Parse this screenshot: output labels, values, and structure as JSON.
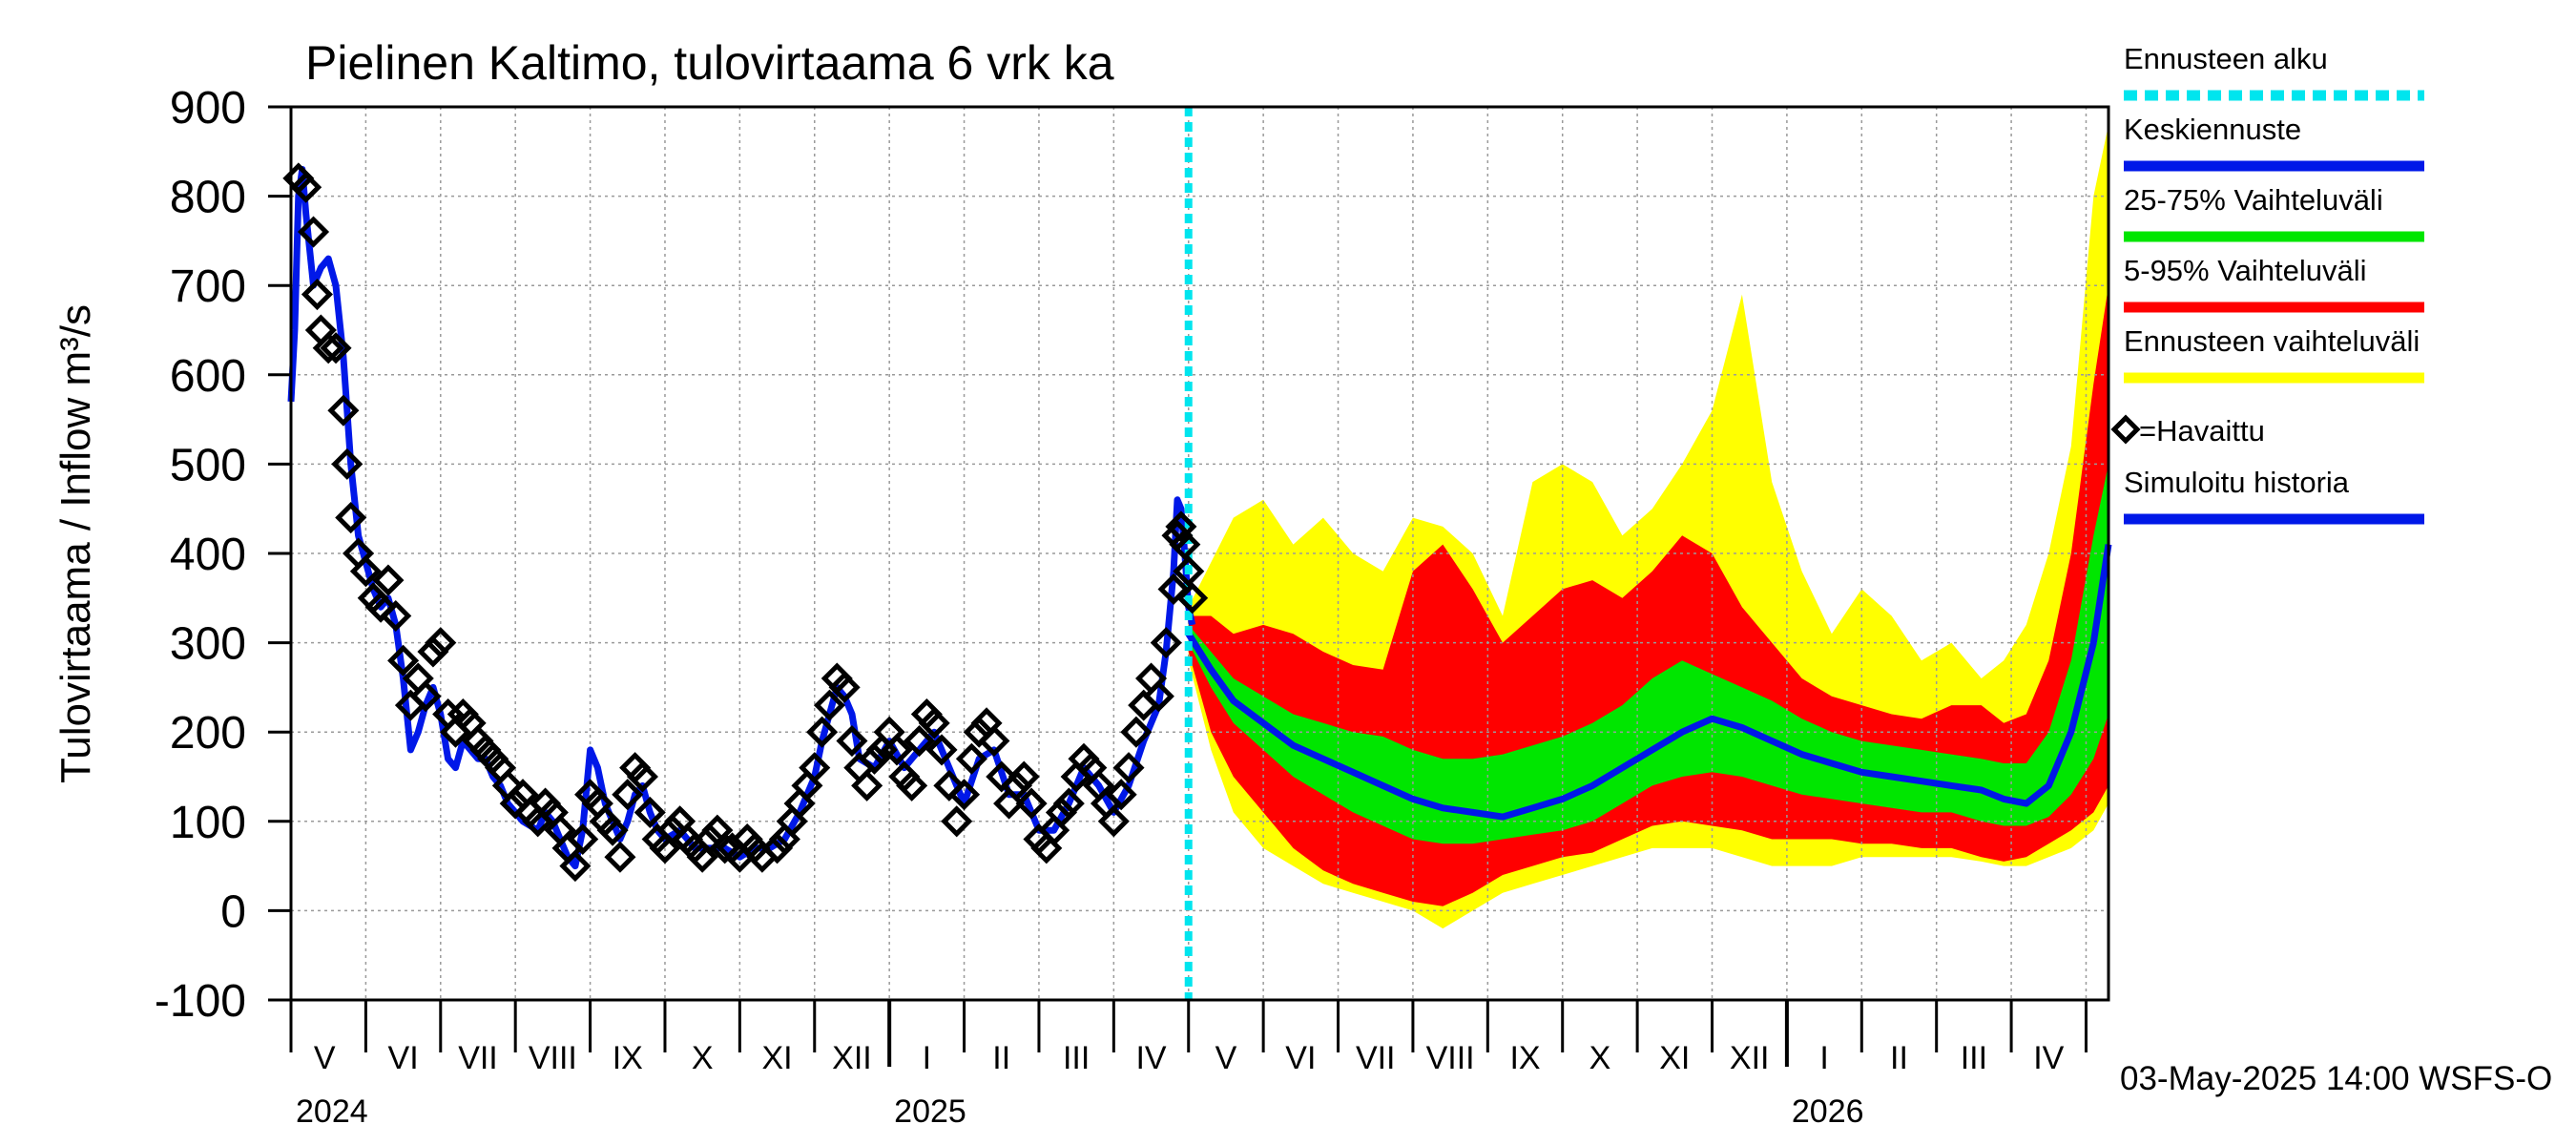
{
  "chart_data": {
    "type": "line",
    "title": "Pielinen Kaltimo, tulovirtaama  6 vrk ka",
    "ylabel": "Tulovirtaama / Inflow    m³/s",
    "ylim": [
      -100,
      900
    ],
    "yticks": [
      -100,
      0,
      100,
      200,
      300,
      400,
      500,
      600,
      700,
      800,
      900
    ],
    "xlim": [
      0,
      24.3
    ],
    "forecast_start": 12.0,
    "months": [
      {
        "label": "V",
        "x": 0.45
      },
      {
        "label": "VI",
        "x": 1.5
      },
      {
        "label": "VII",
        "x": 2.5
      },
      {
        "label": "VIII",
        "x": 3.5
      },
      {
        "label": "IX",
        "x": 4.5
      },
      {
        "label": "X",
        "x": 5.5
      },
      {
        "label": "XI",
        "x": 6.5
      },
      {
        "label": "XII",
        "x": 7.5
      },
      {
        "label": "I",
        "x": 8.5
      },
      {
        "label": "II",
        "x": 9.5
      },
      {
        "label": "III",
        "x": 10.5
      },
      {
        "label": "IV",
        "x": 11.5
      },
      {
        "label": "V",
        "x": 12.5
      },
      {
        "label": "VI",
        "x": 13.5
      },
      {
        "label": "VII",
        "x": 14.5
      },
      {
        "label": "VIII",
        "x": 15.5
      },
      {
        "label": "IX",
        "x": 16.5
      },
      {
        "label": "X",
        "x": 17.5
      },
      {
        "label": "XI",
        "x": 18.5
      },
      {
        "label": "XII",
        "x": 19.5
      },
      {
        "label": "I",
        "x": 20.5
      },
      {
        "label": "II",
        "x": 21.5
      },
      {
        "label": "III",
        "x": 22.5
      },
      {
        "label": "IV",
        "x": 23.5
      }
    ],
    "years": [
      {
        "label": "2024",
        "x": 0.0
      },
      {
        "label": "2025",
        "x": 8.0
      },
      {
        "label": "2026",
        "x": 20.0
      }
    ],
    "year_boundaries": [
      8.0,
      20.0
    ],
    "observed_points": [
      [
        0.1,
        820
      ],
      [
        0.2,
        810
      ],
      [
        0.3,
        760
      ],
      [
        0.35,
        690
      ],
      [
        0.4,
        650
      ],
      [
        0.5,
        630
      ],
      [
        0.6,
        630
      ],
      [
        0.7,
        560
      ],
      [
        0.75,
        500
      ],
      [
        0.8,
        440
      ],
      [
        0.9,
        400
      ],
      [
        1.0,
        380
      ],
      [
        1.1,
        350
      ],
      [
        1.2,
        340
      ],
      [
        1.3,
        370
      ],
      [
        1.4,
        330
      ],
      [
        1.5,
        280
      ],
      [
        1.6,
        230
      ],
      [
        1.7,
        260
      ],
      [
        1.8,
        240
      ],
      [
        1.9,
        290
      ],
      [
        2.0,
        300
      ],
      [
        2.1,
        220
      ],
      [
        2.2,
        200
      ],
      [
        2.3,
        220
      ],
      [
        2.4,
        210
      ],
      [
        2.5,
        190
      ],
      [
        2.6,
        180
      ],
      [
        2.7,
        170
      ],
      [
        2.8,
        160
      ],
      [
        2.9,
        140
      ],
      [
        3.0,
        120
      ],
      [
        3.1,
        130
      ],
      [
        3.2,
        110
      ],
      [
        3.3,
        100
      ],
      [
        3.4,
        120
      ],
      [
        3.5,
        110
      ],
      [
        3.6,
        90
      ],
      [
        3.7,
        70
      ],
      [
        3.8,
        50
      ],
      [
        3.9,
        80
      ],
      [
        4.0,
        130
      ],
      [
        4.1,
        120
      ],
      [
        4.2,
        100
      ],
      [
        4.3,
        90
      ],
      [
        4.4,
        60
      ],
      [
        4.5,
        130
      ],
      [
        4.6,
        160
      ],
      [
        4.7,
        150
      ],
      [
        4.8,
        110
      ],
      [
        4.9,
        80
      ],
      [
        5.0,
        70
      ],
      [
        5.1,
        90
      ],
      [
        5.2,
        100
      ],
      [
        5.3,
        80
      ],
      [
        5.4,
        70
      ],
      [
        5.5,
        60
      ],
      [
        5.6,
        80
      ],
      [
        5.7,
        90
      ],
      [
        5.8,
        70
      ],
      [
        5.9,
        70
      ],
      [
        6.0,
        60
      ],
      [
        6.1,
        80
      ],
      [
        6.2,
        70
      ],
      [
        6.3,
        60
      ],
      [
        6.5,
        70
      ],
      [
        6.6,
        80
      ],
      [
        6.7,
        100
      ],
      [
        6.8,
        120
      ],
      [
        6.9,
        140
      ],
      [
        7.0,
        160
      ],
      [
        7.1,
        200
      ],
      [
        7.2,
        230
      ],
      [
        7.3,
        260
      ],
      [
        7.4,
        250
      ],
      [
        7.5,
        190
      ],
      [
        7.6,
        160
      ],
      [
        7.7,
        140
      ],
      [
        7.8,
        170
      ],
      [
        7.9,
        180
      ],
      [
        8.0,
        200
      ],
      [
        8.1,
        180
      ],
      [
        8.2,
        150
      ],
      [
        8.3,
        140
      ],
      [
        8.4,
        190
      ],
      [
        8.5,
        220
      ],
      [
        8.6,
        210
      ],
      [
        8.7,
        180
      ],
      [
        8.8,
        140
      ],
      [
        8.9,
        100
      ],
      [
        9.0,
        130
      ],
      [
        9.1,
        170
      ],
      [
        9.2,
        200
      ],
      [
        9.3,
        210
      ],
      [
        9.4,
        190
      ],
      [
        9.5,
        150
      ],
      [
        9.6,
        120
      ],
      [
        9.7,
        140
      ],
      [
        9.8,
        150
      ],
      [
        9.9,
        120
      ],
      [
        10.0,
        80
      ],
      [
        10.1,
        70
      ],
      [
        10.2,
        90
      ],
      [
        10.3,
        110
      ],
      [
        10.4,
        120
      ],
      [
        10.5,
        150
      ],
      [
        10.6,
        170
      ],
      [
        10.7,
        160
      ],
      [
        10.8,
        140
      ],
      [
        10.9,
        120
      ],
      [
        11.0,
        100
      ],
      [
        11.1,
        130
      ],
      [
        11.2,
        160
      ],
      [
        11.3,
        200
      ],
      [
        11.4,
        230
      ],
      [
        11.5,
        260
      ],
      [
        11.6,
        240
      ],
      [
        11.7,
        300
      ],
      [
        11.8,
        360
      ],
      [
        11.85,
        420
      ],
      [
        11.9,
        430
      ],
      [
        11.95,
        410
      ],
      [
        12.0,
        380
      ],
      [
        12.05,
        350
      ]
    ],
    "simulated_history": [
      [
        0.0,
        570
      ],
      [
        0.05,
        650
      ],
      [
        0.1,
        800
      ],
      [
        0.15,
        830
      ],
      [
        0.2,
        780
      ],
      [
        0.3,
        700
      ],
      [
        0.4,
        720
      ],
      [
        0.5,
        730
      ],
      [
        0.6,
        700
      ],
      [
        0.7,
        620
      ],
      [
        0.8,
        500
      ],
      [
        0.9,
        420
      ],
      [
        1.0,
        390
      ],
      [
        1.1,
        360
      ],
      [
        1.2,
        340
      ],
      [
        1.3,
        350
      ],
      [
        1.4,
        320
      ],
      [
        1.5,
        260
      ],
      [
        1.6,
        180
      ],
      [
        1.7,
        200
      ],
      [
        1.8,
        230
      ],
      [
        1.9,
        250
      ],
      [
        2.0,
        220
      ],
      [
        2.1,
        170
      ],
      [
        2.2,
        160
      ],
      [
        2.3,
        190
      ],
      [
        2.4,
        180
      ],
      [
        2.5,
        170
      ],
      [
        2.6,
        170
      ],
      [
        2.7,
        150
      ],
      [
        2.8,
        140
      ],
      [
        2.9,
        120
      ],
      [
        3.0,
        110
      ],
      [
        3.1,
        100
      ],
      [
        3.2,
        95
      ],
      [
        3.3,
        90
      ],
      [
        3.4,
        110
      ],
      [
        3.5,
        100
      ],
      [
        3.6,
        80
      ],
      [
        3.7,
        60
      ],
      [
        3.8,
        50
      ],
      [
        3.9,
        90
      ],
      [
        4.0,
        180
      ],
      [
        4.1,
        160
      ],
      [
        4.2,
        120
      ],
      [
        4.3,
        100
      ],
      [
        4.4,
        80
      ],
      [
        4.5,
        100
      ],
      [
        4.6,
        130
      ],
      [
        4.7,
        140
      ],
      [
        4.8,
        110
      ],
      [
        4.9,
        90
      ],
      [
        5.0,
        80
      ],
      [
        5.2,
        90
      ],
      [
        5.4,
        70
      ],
      [
        5.6,
        70
      ],
      [
        5.8,
        70
      ],
      [
        6.0,
        60
      ],
      [
        6.2,
        70
      ],
      [
        6.4,
        70
      ],
      [
        6.6,
        80
      ],
      [
        6.8,
        110
      ],
      [
        7.0,
        150
      ],
      [
        7.1,
        190
      ],
      [
        7.2,
        220
      ],
      [
        7.3,
        250
      ],
      [
        7.4,
        240
      ],
      [
        7.5,
        220
      ],
      [
        7.6,
        170
      ],
      [
        7.8,
        160
      ],
      [
        8.0,
        190
      ],
      [
        8.2,
        160
      ],
      [
        8.4,
        180
      ],
      [
        8.6,
        200
      ],
      [
        8.8,
        160
      ],
      [
        9.0,
        120
      ],
      [
        9.2,
        170
      ],
      [
        9.4,
        180
      ],
      [
        9.6,
        130
      ],
      [
        9.8,
        130
      ],
      [
        10.0,
        90
      ],
      [
        10.2,
        90
      ],
      [
        10.4,
        120
      ],
      [
        10.6,
        160
      ],
      [
        10.8,
        140
      ],
      [
        11.0,
        110
      ],
      [
        11.2,
        140
      ],
      [
        11.4,
        190
      ],
      [
        11.6,
        230
      ],
      [
        11.7,
        290
      ],
      [
        11.8,
        380
      ],
      [
        11.85,
        460
      ],
      [
        11.9,
        450
      ],
      [
        11.95,
        400
      ],
      [
        12.0,
        340
      ],
      [
        12.05,
        320
      ]
    ],
    "median": [
      [
        12.0,
        310
      ],
      [
        12.3,
        270
      ],
      [
        12.6,
        235
      ],
      [
        13.0,
        210
      ],
      [
        13.4,
        185
      ],
      [
        13.8,
        170
      ],
      [
        14.2,
        155
      ],
      [
        14.6,
        140
      ],
      [
        15.0,
        125
      ],
      [
        15.4,
        115
      ],
      [
        15.8,
        110
      ],
      [
        16.2,
        105
      ],
      [
        16.6,
        115
      ],
      [
        17.0,
        125
      ],
      [
        17.4,
        140
      ],
      [
        17.8,
        160
      ],
      [
        18.2,
        180
      ],
      [
        18.6,
        200
      ],
      [
        19.0,
        215
      ],
      [
        19.4,
        205
      ],
      [
        19.8,
        190
      ],
      [
        20.2,
        175
      ],
      [
        20.6,
        165
      ],
      [
        21.0,
        155
      ],
      [
        21.4,
        150
      ],
      [
        21.8,
        145
      ],
      [
        22.2,
        140
      ],
      [
        22.6,
        135
      ],
      [
        22.9,
        125
      ],
      [
        23.2,
        120
      ],
      [
        23.5,
        140
      ],
      [
        23.8,
        200
      ],
      [
        24.1,
        300
      ],
      [
        24.3,
        410
      ]
    ],
    "band_25_75": [
      [
        12.0,
        320,
        300
      ],
      [
        12.3,
        290,
        250
      ],
      [
        12.6,
        260,
        210
      ],
      [
        13.0,
        240,
        180
      ],
      [
        13.4,
        220,
        150
      ],
      [
        13.8,
        210,
        130
      ],
      [
        14.2,
        200,
        110
      ],
      [
        14.6,
        195,
        95
      ],
      [
        15.0,
        180,
        80
      ],
      [
        15.4,
        170,
        75
      ],
      [
        15.8,
        170,
        75
      ],
      [
        16.2,
        175,
        80
      ],
      [
        16.6,
        185,
        85
      ],
      [
        17.0,
        195,
        90
      ],
      [
        17.4,
        210,
        100
      ],
      [
        17.8,
        230,
        120
      ],
      [
        18.2,
        260,
        140
      ],
      [
        18.6,
        280,
        150
      ],
      [
        19.0,
        265,
        155
      ],
      [
        19.4,
        250,
        150
      ],
      [
        19.8,
        235,
        140
      ],
      [
        20.2,
        215,
        130
      ],
      [
        20.6,
        200,
        125
      ],
      [
        21.0,
        190,
        120
      ],
      [
        21.4,
        185,
        115
      ],
      [
        21.8,
        180,
        110
      ],
      [
        22.2,
        175,
        110
      ],
      [
        22.6,
        170,
        100
      ],
      [
        22.9,
        165,
        95
      ],
      [
        23.2,
        165,
        95
      ],
      [
        23.5,
        200,
        105
      ],
      [
        23.8,
        280,
        130
      ],
      [
        24.1,
        420,
        170
      ],
      [
        24.3,
        500,
        220
      ]
    ],
    "band_5_95": [
      [
        12.0,
        330,
        290
      ],
      [
        12.3,
        330,
        200
      ],
      [
        12.6,
        310,
        150
      ],
      [
        13.0,
        320,
        110
      ],
      [
        13.4,
        310,
        70
      ],
      [
        13.8,
        290,
        45
      ],
      [
        14.2,
        275,
        30
      ],
      [
        14.6,
        270,
        20
      ],
      [
        15.0,
        380,
        10
      ],
      [
        15.4,
        410,
        5
      ],
      [
        15.8,
        360,
        20
      ],
      [
        16.2,
        300,
        40
      ],
      [
        16.6,
        330,
        50
      ],
      [
        17.0,
        360,
        60
      ],
      [
        17.4,
        370,
        65
      ],
      [
        17.8,
        350,
        80
      ],
      [
        18.2,
        380,
        95
      ],
      [
        18.6,
        420,
        100
      ],
      [
        19.0,
        400,
        95
      ],
      [
        19.4,
        340,
        90
      ],
      [
        19.8,
        300,
        80
      ],
      [
        20.2,
        260,
        80
      ],
      [
        20.6,
        240,
        80
      ],
      [
        21.0,
        230,
        75
      ],
      [
        21.4,
        220,
        75
      ],
      [
        21.8,
        215,
        70
      ],
      [
        22.2,
        230,
        70
      ],
      [
        22.6,
        230,
        60
      ],
      [
        22.9,
        210,
        55
      ],
      [
        23.2,
        220,
        60
      ],
      [
        23.5,
        280,
        75
      ],
      [
        23.8,
        400,
        90
      ],
      [
        24.1,
        590,
        110
      ],
      [
        24.3,
        700,
        140
      ]
    ],
    "band_full": [
      [
        12.0,
        340,
        280
      ],
      [
        12.3,
        390,
        180
      ],
      [
        12.6,
        440,
        110
      ],
      [
        13.0,
        460,
        70
      ],
      [
        13.4,
        410,
        50
      ],
      [
        13.8,
        440,
        30
      ],
      [
        14.2,
        400,
        20
      ],
      [
        14.6,
        380,
        10
      ],
      [
        15.0,
        440,
        0
      ],
      [
        15.4,
        430,
        -20
      ],
      [
        15.8,
        400,
        0
      ],
      [
        16.2,
        330,
        20
      ],
      [
        16.6,
        480,
        30
      ],
      [
        17.0,
        500,
        40
      ],
      [
        17.4,
        480,
        50
      ],
      [
        17.8,
        420,
        60
      ],
      [
        18.2,
        450,
        70
      ],
      [
        18.6,
        500,
        70
      ],
      [
        19.0,
        560,
        70
      ],
      [
        19.4,
        690,
        60
      ],
      [
        19.8,
        480,
        50
      ],
      [
        20.2,
        380,
        50
      ],
      [
        20.6,
        310,
        50
      ],
      [
        21.0,
        360,
        60
      ],
      [
        21.4,
        330,
        60
      ],
      [
        21.8,
        280,
        60
      ],
      [
        22.2,
        300,
        60
      ],
      [
        22.6,
        260,
        55
      ],
      [
        22.9,
        280,
        50
      ],
      [
        23.2,
        320,
        50
      ],
      [
        23.5,
        400,
        60
      ],
      [
        23.8,
        520,
        70
      ],
      [
        24.1,
        800,
        90
      ],
      [
        24.3,
        880,
        120
      ]
    ],
    "legend": [
      {
        "label": "Ennusteen alku",
        "color": "#00e5ee",
        "style": "dashed"
      },
      {
        "label": "Keskiennuste",
        "color": "#0018e8",
        "style": "solid"
      },
      {
        "label": "25-75% Vaihteluväli",
        "color": "#00e600",
        "style": "solid"
      },
      {
        "label": "5-95% Vaihteluväli",
        "color": "#ff0000",
        "style": "solid"
      },
      {
        "label": "Ennusteen vaihteluväli",
        "color": "#ffff00",
        "style": "solid"
      },
      {
        "label": "=Havaittu",
        "color": "#000000",
        "style": "marker"
      },
      {
        "label": "Simuloitu historia",
        "color": "#0018e8",
        "style": "solid"
      }
    ],
    "timestamp": "03-May-2025 14:00 WSFS-O",
    "colors": {
      "observed": "#000000",
      "history": "#0018e8",
      "median": "#0018e8",
      "band_25_75": "#00e600",
      "band_5_95": "#ff0000",
      "band_full": "#ffff00",
      "forecast_line": "#00e5ee",
      "grid": "#9a9a9a"
    }
  }
}
